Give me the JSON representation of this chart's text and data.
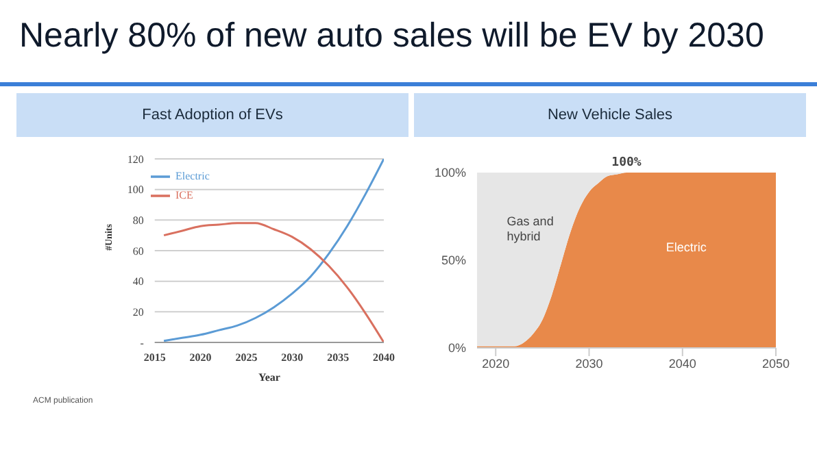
{
  "chart_data": [
    {
      "type": "other",
      "title": "Nearly 80% of new auto sales will be EV by 2030",
      "annotations": [
        "ACM publication"
      ]
    },
    {
      "type": "line",
      "title": "Fast Adoption of EVs",
      "xlabel": "Year",
      "ylabel": "#Units",
      "x": [
        2016,
        2018,
        2020,
        2022,
        2024,
        2026,
        2028,
        2030,
        2032,
        2034,
        2036,
        2038,
        2040
      ],
      "xlim": [
        2015,
        2040
      ],
      "xticks": [
        2015,
        2020,
        2025,
        2030,
        2035,
        2040
      ],
      "ylim": [
        0,
        120
      ],
      "yticks": [
        {
          "value": 0,
          "label": "-"
        },
        20,
        40,
        60,
        80,
        100,
        120
      ],
      "grid": "y",
      "legend": "top left",
      "marker": "none",
      "line_style": "solid",
      "series": [
        {
          "name": "Electric",
          "color": "#5b9bd5",
          "values": [
            1,
            3,
            5,
            8,
            11,
            16,
            23,
            32,
            43,
            58,
            76,
            97,
            120
          ]
        },
        {
          "name": "ICE",
          "color": "#d9705f",
          "values": [
            70,
            73,
            76,
            77,
            78,
            78,
            74,
            69,
            61,
            50,
            36,
            19,
            0
          ]
        }
      ]
    },
    {
      "type": "area",
      "title": "New Vehicle Sales",
      "stacked": true,
      "x": [
        2018,
        2022,
        2023,
        2024,
        2025,
        2026,
        2027,
        2028,
        2029,
        2030,
        2031,
        2032,
        2033,
        2034,
        2050
      ],
      "xlim": [
        2018,
        2050
      ],
      "xticks": [
        2020,
        2030,
        2040,
        2050
      ],
      "ylim": [
        0,
        100
      ],
      "yticks": [
        {
          "value": 0,
          "label": "0%"
        },
        {
          "value": 50,
          "label": "50%"
        },
        {
          "value": 100,
          "label": "100%"
        }
      ],
      "annotations": [
        {
          "text": "100%",
          "x": 2034,
          "y": 100
        }
      ],
      "series": [
        {
          "name": "Electric",
          "color": "#e8894a",
          "values": [
            1,
            1,
            3,
            8,
            16,
            30,
            48,
            66,
            80,
            89,
            94,
            98,
            99,
            100,
            100
          ]
        },
        {
          "name": "Gas and hybrid",
          "color": "#e6e6e6",
          "values": [
            99,
            99,
            97,
            92,
            84,
            70,
            52,
            34,
            20,
            11,
            6,
            2,
            1,
            0,
            0
          ]
        }
      ]
    }
  ]
}
